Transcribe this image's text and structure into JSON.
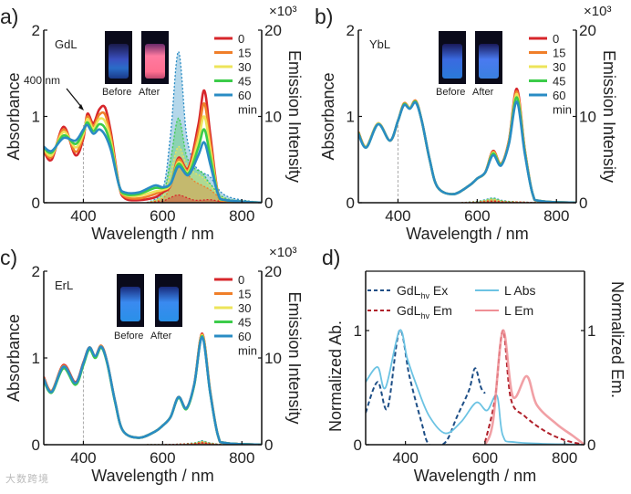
{
  "colors": {
    "t0": "#d7262b",
    "t15": "#f07f2a",
    "t30": "#ede45a",
    "t45": "#3ccc4a",
    "t60": "#2a8cc4",
    "ex": "#1d4e86",
    "labs": "#6cc3e3",
    "em": "#b0202a",
    "lem": "#ef8f95"
  },
  "watermark": "大数跨境",
  "chart_data": [
    {
      "panel": "a)",
      "type": "line",
      "title": "GdL",
      "xlabel": "Wavelength / nm",
      "ylabel": "Absorbance",
      "y2label": "Emission Intensity",
      "y2unit": "×10³",
      "xlim": [
        300,
        850
      ],
      "ylim": [
        0,
        2
      ],
      "y2lim": [
        0,
        20
      ],
      "xticks": [
        400,
        600,
        800
      ],
      "yticks": [
        0,
        1,
        2
      ],
      "y2ticks": [
        0,
        10,
        20
      ],
      "legend": [
        "0",
        "15",
        "30",
        "45",
        "60"
      ],
      "legend_unit": "min",
      "legend_position": "top-right",
      "inset": {
        "before": "Before",
        "after": "After",
        "after_glow": "pink"
      },
      "annotation": {
        "text": "400 nm",
        "x": 400
      },
      "abs_x": [
        300,
        320,
        350,
        380,
        400,
        410,
        425,
        440,
        455,
        470,
        490,
        505,
        540,
        580,
        600,
        620,
        640,
        665,
        690,
        705,
        720,
        740,
        760,
        850
      ],
      "abs_series": [
        {
          "name": "0",
          "values": [
            0.6,
            0.5,
            0.88,
            0.55,
            0.75,
            1.03,
            0.92,
            1.08,
            1.1,
            0.8,
            0.2,
            0.05,
            0.03,
            0.06,
            0.12,
            0.2,
            0.52,
            0.4,
            0.9,
            1.3,
            0.8,
            0.1,
            0.02,
            0
          ]
        },
        {
          "name": "15",
          "values": [
            0.61,
            0.53,
            0.85,
            0.59,
            0.78,
            1.0,
            0.89,
            1.02,
            1.02,
            0.75,
            0.2,
            0.07,
            0.05,
            0.1,
            0.14,
            0.21,
            0.5,
            0.38,
            0.81,
            1.15,
            0.71,
            0.1,
            0.02,
            0
          ]
        },
        {
          "name": "30",
          "values": [
            0.63,
            0.55,
            0.82,
            0.64,
            0.8,
            0.97,
            0.86,
            0.97,
            0.94,
            0.7,
            0.2,
            0.09,
            0.08,
            0.13,
            0.15,
            0.21,
            0.47,
            0.36,
            0.73,
            1.0,
            0.63,
            0.1,
            0.03,
            0
          ]
        },
        {
          "name": "45",
          "values": [
            0.64,
            0.58,
            0.78,
            0.68,
            0.83,
            0.93,
            0.83,
            0.91,
            0.86,
            0.65,
            0.2,
            0.1,
            0.1,
            0.17,
            0.17,
            0.22,
            0.45,
            0.34,
            0.64,
            0.85,
            0.54,
            0.1,
            0.03,
            0
          ]
        },
        {
          "name": "60",
          "values": [
            0.65,
            0.6,
            0.75,
            0.72,
            0.85,
            0.9,
            0.8,
            0.85,
            0.78,
            0.6,
            0.2,
            0.12,
            0.12,
            0.2,
            0.18,
            0.22,
            0.42,
            0.32,
            0.55,
            0.7,
            0.45,
            0.1,
            0.03,
            0
          ]
        }
      ],
      "em_x": [
        560,
        600,
        620,
        640,
        660,
        680,
        700,
        720,
        760,
        850
      ],
      "em_series": [
        {
          "name": "0",
          "values": [
            0,
            0.2,
            0.6,
            0.9,
            0.6,
            0.3,
            0.3,
            0.35,
            0.1,
            0
          ]
        },
        {
          "name": "15",
          "values": [
            0,
            0.5,
            2,
            5.3,
            3.5,
            2.5,
            2,
            1.5,
            0.3,
            0
          ]
        },
        {
          "name": "30",
          "values": [
            0,
            0.8,
            3.5,
            6.5,
            4.5,
            3.5,
            3,
            2,
            0.4,
            0
          ]
        },
        {
          "name": "45",
          "values": [
            0,
            1,
            5,
            9.8,
            5.5,
            4,
            3.5,
            2.2,
            0.5,
            0
          ]
        },
        {
          "name": "60",
          "values": [
            0,
            1.5,
            8,
            17.5,
            8,
            4.5,
            3.5,
            3,
            0.8,
            0
          ]
        }
      ]
    },
    {
      "panel": "b)",
      "type": "line",
      "title": "YbL",
      "xlabel": "Wavelength / nm",
      "ylabel": "Absorbance",
      "y2label": "Emission Intensity",
      "y2unit": "×10³",
      "xlim": [
        300,
        850
      ],
      "ylim": [
        0,
        2
      ],
      "y2lim": [
        0,
        20
      ],
      "xticks": [
        400,
        600,
        800
      ],
      "yticks": [
        0,
        1,
        2
      ],
      "y2ticks": [
        0,
        10,
        20
      ],
      "legend": [
        "0",
        "15",
        "30",
        "45",
        "60"
      ],
      "legend_unit": "min",
      "legend_position": "top-right",
      "inset": {
        "before": "Before",
        "after": "After",
        "after_glow": "blue"
      },
      "abs_x": [
        300,
        320,
        350,
        380,
        400,
        415,
        430,
        445,
        460,
        480,
        500,
        540,
        580,
        600,
        620,
        640,
        660,
        680,
        700,
        720,
        740,
        760,
        850
      ],
      "abs_series": [
        {
          "name": "0",
          "values": [
            0.82,
            0.65,
            0.92,
            0.72,
            0.95,
            1.15,
            1.1,
            1.18,
            0.95,
            0.5,
            0.18,
            0.1,
            0.2,
            0.28,
            0.35,
            0.6,
            0.45,
            0.72,
            1.32,
            0.62,
            0.1,
            0.02,
            0
          ]
        },
        {
          "name": "15",
          "values": [
            0.82,
            0.65,
            0.92,
            0.72,
            0.95,
            1.15,
            1.1,
            1.18,
            0.95,
            0.5,
            0.18,
            0.1,
            0.2,
            0.28,
            0.35,
            0.59,
            0.45,
            0.71,
            1.29,
            0.61,
            0.1,
            0.02,
            0
          ]
        },
        {
          "name": "30",
          "values": [
            0.81,
            0.65,
            0.92,
            0.72,
            0.95,
            1.14,
            1.1,
            1.17,
            0.95,
            0.5,
            0.18,
            0.1,
            0.2,
            0.28,
            0.35,
            0.58,
            0.44,
            0.7,
            1.26,
            0.6,
            0.1,
            0.02,
            0
          ]
        },
        {
          "name": "45",
          "values": [
            0.81,
            0.64,
            0.91,
            0.72,
            0.95,
            1.14,
            1.09,
            1.17,
            0.95,
            0.5,
            0.18,
            0.1,
            0.2,
            0.28,
            0.35,
            0.57,
            0.44,
            0.69,
            1.22,
            0.59,
            0.1,
            0.02,
            0
          ]
        },
        {
          "name": "60",
          "values": [
            0.8,
            0.64,
            0.91,
            0.72,
            0.95,
            1.13,
            1.09,
            1.16,
            0.95,
            0.5,
            0.18,
            0.1,
            0.2,
            0.28,
            0.35,
            0.55,
            0.43,
            0.68,
            1.17,
            0.57,
            0.1,
            0.02,
            0
          ]
        }
      ],
      "em_x": [
        560,
        600,
        620,
        640,
        660,
        680,
        700,
        720,
        760,
        850
      ],
      "em_series": [
        {
          "name": "0",
          "values": [
            0,
            0.05,
            0.1,
            0.15,
            0.1,
            0.05,
            0.05,
            0.05,
            0,
            0
          ]
        },
        {
          "name": "15",
          "values": [
            0,
            0.1,
            0.2,
            0.3,
            0.15,
            0.1,
            0.1,
            0.05,
            0,
            0
          ]
        },
        {
          "name": "30",
          "values": [
            0,
            0.1,
            0.25,
            0.4,
            0.2,
            0.1,
            0.1,
            0.05,
            0,
            0
          ]
        },
        {
          "name": "45",
          "values": [
            0,
            0.15,
            0.3,
            0.5,
            0.25,
            0.15,
            0.1,
            0.05,
            0,
            0
          ]
        },
        {
          "name": "60",
          "values": [
            0,
            0.15,
            0.35,
            0.55,
            0.3,
            0.15,
            0.1,
            0.05,
            0,
            0
          ]
        }
      ]
    },
    {
      "panel": "c)",
      "type": "line",
      "title": "ErL",
      "xlabel": "Wavelength / nm",
      "ylabel": "Absorbance",
      "y2label": "Emission Intensity",
      "y2unit": "×10³",
      "xlim": [
        300,
        850
      ],
      "ylim": [
        0,
        2
      ],
      "y2lim": [
        0,
        20
      ],
      "xticks": [
        400,
        600,
        800
      ],
      "yticks": [
        0,
        1,
        2
      ],
      "y2ticks": [
        0,
        10,
        20
      ],
      "legend": [
        "0",
        "15",
        "30",
        "45",
        "60"
      ],
      "legend_unit": "min",
      "legend_position": "top-right",
      "inset": {
        "before": "Before",
        "after": "After",
        "after_glow": "blue"
      },
      "abs_x": [
        300,
        320,
        350,
        380,
        400,
        415,
        430,
        445,
        460,
        480,
        500,
        540,
        580,
        600,
        620,
        640,
        660,
        680,
        700,
        720,
        740,
        760,
        850
      ],
      "abs_series": [
        {
          "name": "0",
          "values": [
            0.78,
            0.62,
            0.92,
            0.72,
            0.95,
            1.12,
            1.02,
            1.14,
            0.95,
            0.5,
            0.16,
            0.08,
            0.15,
            0.22,
            0.32,
            0.55,
            0.42,
            0.7,
            1.28,
            0.62,
            0.1,
            0.02,
            0
          ]
        },
        {
          "name": "15",
          "values": [
            0.77,
            0.62,
            0.91,
            0.71,
            0.94,
            1.12,
            1.02,
            1.14,
            0.95,
            0.5,
            0.16,
            0.08,
            0.15,
            0.22,
            0.32,
            0.55,
            0.42,
            0.7,
            1.27,
            0.61,
            0.1,
            0.02,
            0
          ]
        },
        {
          "name": "30",
          "values": [
            0.76,
            0.61,
            0.9,
            0.7,
            0.93,
            1.11,
            1.01,
            1.13,
            0.94,
            0.5,
            0.16,
            0.08,
            0.15,
            0.22,
            0.32,
            0.55,
            0.42,
            0.69,
            1.26,
            0.61,
            0.1,
            0.02,
            0
          ]
        },
        {
          "name": "45",
          "values": [
            0.74,
            0.6,
            0.88,
            0.69,
            0.92,
            1.1,
            1.0,
            1.12,
            0.94,
            0.49,
            0.16,
            0.08,
            0.15,
            0.22,
            0.32,
            0.54,
            0.41,
            0.69,
            1.25,
            0.6,
            0.1,
            0.02,
            0
          ]
        },
        {
          "name": "60",
          "values": [
            0.76,
            0.61,
            0.9,
            0.71,
            0.94,
            1.12,
            1.02,
            1.13,
            0.95,
            0.5,
            0.16,
            0.08,
            0.15,
            0.22,
            0.32,
            0.55,
            0.42,
            0.7,
            1.24,
            0.6,
            0.1,
            0.02,
            0
          ]
        }
      ],
      "em_x": [
        560,
        600,
        640,
        680,
        700,
        720,
        760,
        850
      ],
      "em_series": [
        {
          "name": "0",
          "values": [
            0,
            0,
            0.05,
            0.1,
            0.2,
            0.1,
            0,
            0
          ]
        },
        {
          "name": "15",
          "values": [
            0,
            0,
            0.05,
            0.15,
            0.3,
            0.15,
            0,
            0
          ]
        },
        {
          "name": "30",
          "values": [
            0,
            0,
            0.05,
            0.15,
            0.35,
            0.15,
            0,
            0
          ]
        },
        {
          "name": "45",
          "values": [
            0,
            0,
            0.05,
            0.2,
            0.4,
            0.2,
            0,
            0
          ]
        },
        {
          "name": "60",
          "values": [
            0,
            0,
            0.05,
            0.2,
            0.45,
            0.2,
            0,
            0
          ]
        }
      ]
    },
    {
      "panel": "d)",
      "type": "line",
      "xlabel": "Wavelength / nm",
      "ylabel": "Normalized Ab.",
      "y2label": "Normalized Em.",
      "xlim": [
        300,
        850
      ],
      "ylim": [
        0,
        1.52
      ],
      "y2lim": [
        0,
        1.52
      ],
      "xticks": [
        400,
        600,
        800
      ],
      "yticks": [
        0,
        1
      ],
      "y2ticks": [
        0,
        1
      ],
      "legend_position": "top",
      "series": [
        {
          "name": "GdL Ex",
          "label_main": "GdL",
          "label_sub": "hv",
          "label_tail": " Ex",
          "style": "dashed",
          "color_key": "ex",
          "points": [
            [
              300,
              0.28
            ],
            [
              330,
              0.55
            ],
            [
              355,
              0.32
            ],
            [
              385,
              1.0
            ],
            [
              410,
              0.6
            ],
            [
              440,
              0.2
            ],
            [
              460,
              0.0
            ],
            [
              500,
              0.02
            ],
            [
              530,
              0.25
            ],
            [
              560,
              0.48
            ],
            [
              575,
              0.67
            ],
            [
              590,
              0.5
            ],
            [
              600,
              0.45
            ]
          ]
        },
        {
          "name": "L Abs",
          "label_main": "L Abs",
          "style": "solid",
          "color_key": "labs",
          "points": [
            [
              300,
              0.55
            ],
            [
              330,
              0.68
            ],
            [
              350,
              0.5
            ],
            [
              385,
              1.0
            ],
            [
              405,
              0.75
            ],
            [
              430,
              0.5
            ],
            [
              460,
              0.25
            ],
            [
              500,
              0.1
            ],
            [
              540,
              0.2
            ],
            [
              578,
              0.37
            ],
            [
              605,
              0.3
            ],
            [
              630,
              0.43
            ],
            [
              645,
              0.08
            ],
            [
              680,
              0.02
            ],
            [
              850,
              0
            ]
          ]
        },
        {
          "name": "GdL Em",
          "label_main": "GdL",
          "label_sub": "hv",
          "label_tail": " Em",
          "style": "dashed",
          "color_key": "em",
          "points": [
            [
              600,
              0.02
            ],
            [
              625,
              0.4
            ],
            [
              645,
              1.0
            ],
            [
              665,
              0.4
            ],
            [
              700,
              0.25
            ],
            [
              750,
              0.12
            ],
            [
              800,
              0.04
            ],
            [
              850,
              0
            ]
          ]
        },
        {
          "name": "L Em",
          "label_main": "L Em",
          "style": "solid",
          "color_key": "lem",
          "points": [
            [
              600,
              0
            ],
            [
              620,
              0.2
            ],
            [
              645,
              1.0
            ],
            [
              670,
              0.42
            ],
            [
              705,
              0.6
            ],
            [
              730,
              0.35
            ],
            [
              780,
              0.18
            ],
            [
              820,
              0.08
            ],
            [
              850,
              0
            ]
          ]
        }
      ]
    }
  ]
}
